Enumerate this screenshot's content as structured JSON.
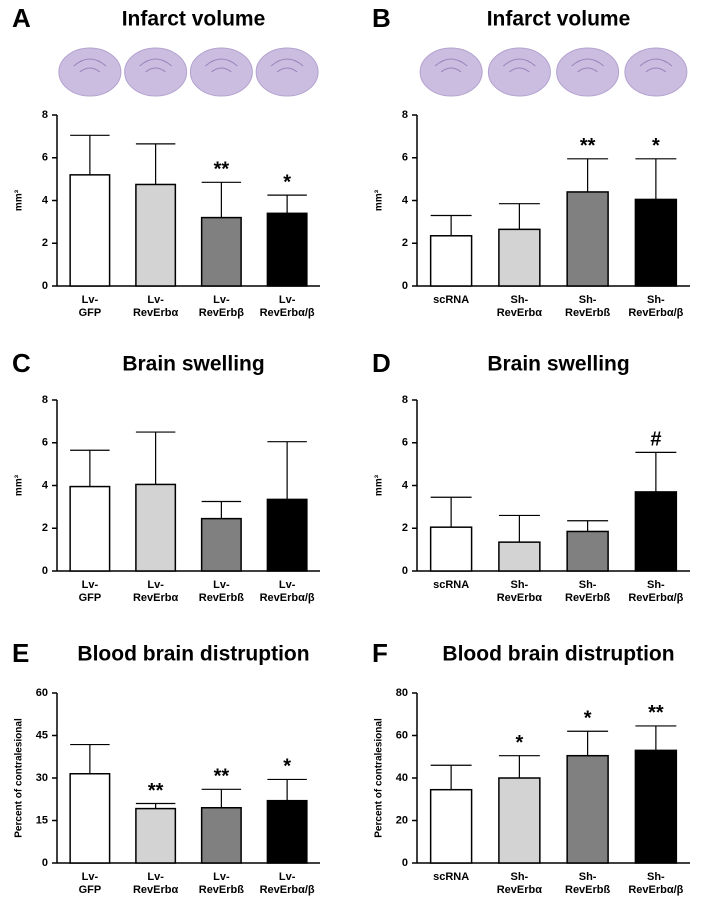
{
  "chart_data": [
    {
      "type": "bar",
      "panel": "A",
      "title": "Infarct volume",
      "ylabel": "mm³",
      "categories": [
        [
          "Lv-",
          "GFP"
        ],
        [
          "Lv-",
          "RevErbα"
        ],
        [
          "Lv-",
          "RevErbβ"
        ],
        [
          "Lv-",
          "RevErbα/β"
        ]
      ],
      "values": [
        5.2,
        4.75,
        3.2,
        3.4
      ],
      "errors": [
        1.85,
        1.9,
        1.65,
        0.85
      ],
      "significance": [
        null,
        null,
        "**",
        "*"
      ],
      "colors": [
        "#ffffff",
        "#d3d3d3",
        "#808080",
        "#000000"
      ],
      "ylim": [
        0,
        8
      ],
      "yticks": [
        0,
        2,
        4,
        6,
        8
      ]
    },
    {
      "type": "bar",
      "panel": "B",
      "title": "Infarct volume",
      "ylabel": "mm³",
      "categories": [
        [
          "scRNA"
        ],
        [
          "Sh-",
          "RevErbα"
        ],
        [
          "Sh-",
          "RevErbß"
        ],
        [
          "Sh-",
          "RevErbα/β"
        ]
      ],
      "values": [
        2.35,
        2.65,
        4.4,
        4.05
      ],
      "errors": [
        0.95,
        1.2,
        1.55,
        1.9
      ],
      "significance": [
        null,
        null,
        "**",
        "*"
      ],
      "colors": [
        "#ffffff",
        "#d3d3d3",
        "#808080",
        "#000000"
      ],
      "ylim": [
        0,
        8
      ],
      "yticks": [
        0,
        2,
        4,
        6,
        8
      ]
    },
    {
      "type": "bar",
      "panel": "C",
      "title": "Brain swelling",
      "ylabel": "mm³",
      "categories": [
        [
          "Lv-",
          "GFP"
        ],
        [
          "Lv-",
          "RevErbα"
        ],
        [
          "Lv-",
          "RevErbß"
        ],
        [
          "Lv-",
          "RevErbα/β"
        ]
      ],
      "values": [
        3.95,
        4.05,
        2.45,
        3.35
      ],
      "errors": [
        1.7,
        2.45,
        0.8,
        2.7
      ],
      "significance": [
        null,
        null,
        null,
        null
      ],
      "colors": [
        "#ffffff",
        "#d3d3d3",
        "#808080",
        "#000000"
      ],
      "ylim": [
        0,
        8
      ],
      "yticks": [
        0,
        2,
        4,
        6,
        8
      ]
    },
    {
      "type": "bar",
      "panel": "D",
      "title": "Brain swelling",
      "ylabel": "mm³",
      "categories": [
        [
          "scRNA"
        ],
        [
          "Sh-",
          "RevErbα"
        ],
        [
          "Sh-",
          "RevErbß"
        ],
        [
          "Sh-",
          "RevErbα/β"
        ]
      ],
      "values": [
        2.05,
        1.35,
        1.85,
        3.7
      ],
      "errors": [
        1.4,
        1.25,
        0.5,
        1.85
      ],
      "significance": [
        null,
        null,
        null,
        "#"
      ],
      "colors": [
        "#ffffff",
        "#d3d3d3",
        "#808080",
        "#000000"
      ],
      "ylim": [
        0,
        8
      ],
      "yticks": [
        0,
        2,
        4,
        6,
        8
      ]
    },
    {
      "type": "bar",
      "panel": "E",
      "title": "Blood brain distruption",
      "ylabel": "Percent of contralesional",
      "categories": [
        [
          "Lv-",
          "GFP"
        ],
        [
          "Lv-",
          "RevErbα"
        ],
        [
          "Lv-",
          "RevErbß"
        ],
        [
          "Lv-",
          "RevErbα/β"
        ]
      ],
      "values": [
        31.5,
        19.2,
        19.5,
        22
      ],
      "errors": [
        10.3,
        1.8,
        6.5,
        7.5
      ],
      "significance": [
        null,
        "**",
        "**",
        "*"
      ],
      "colors": [
        "#ffffff",
        "#d3d3d3",
        "#808080",
        "#000000"
      ],
      "ylim": [
        0,
        60
      ],
      "yticks": [
        0,
        15,
        30,
        45,
        60
      ]
    },
    {
      "type": "bar",
      "panel": "F",
      "title": "Blood brain distruption",
      "ylabel": "Percent of contralesional",
      "categories": [
        [
          "scRNA"
        ],
        [
          "Sh-",
          "RevErbα"
        ],
        [
          "Sh-",
          "RevErbß"
        ],
        [
          "Sh-",
          "RevErbα/β"
        ]
      ],
      "values": [
        34.5,
        40,
        50.5,
        53
      ],
      "errors": [
        11.5,
        10.5,
        11.5,
        11.5
      ],
      "significance": [
        null,
        "*",
        "*",
        "**"
      ],
      "colors": [
        "#ffffff",
        "#d3d3d3",
        "#808080",
        "#000000"
      ],
      "ylim": [
        0,
        80
      ],
      "yticks": [
        0,
        20,
        40,
        60,
        80
      ]
    }
  ]
}
